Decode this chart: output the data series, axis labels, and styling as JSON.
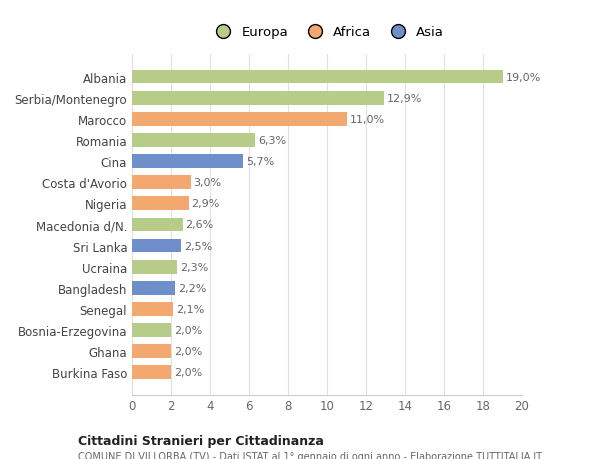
{
  "categories": [
    "Burkina Faso",
    "Ghana",
    "Bosnia-Erzegovina",
    "Senegal",
    "Bangladesh",
    "Ucraina",
    "Sri Lanka",
    "Macedonia d/N.",
    "Nigeria",
    "Costa d'Avorio",
    "Cina",
    "Romania",
    "Marocco",
    "Serbia/Montenegro",
    "Albania"
  ],
  "values": [
    2.0,
    2.0,
    2.0,
    2.1,
    2.2,
    2.3,
    2.5,
    2.6,
    2.9,
    3.0,
    5.7,
    6.3,
    11.0,
    12.9,
    19.0
  ],
  "colors": [
    "#f2a86f",
    "#f2a86f",
    "#b8cc8a",
    "#f2a86f",
    "#6e8fc9",
    "#b8cc8a",
    "#6e8fc9",
    "#b8cc8a",
    "#f2a86f",
    "#f2a86f",
    "#6e8fc9",
    "#b8cc8a",
    "#f2a86f",
    "#b8cc8a",
    "#b8cc8a"
  ],
  "labels": [
    "2,0%",
    "2,0%",
    "2,0%",
    "2,1%",
    "2,2%",
    "2,3%",
    "2,5%",
    "2,6%",
    "2,9%",
    "3,0%",
    "5,7%",
    "6,3%",
    "11,0%",
    "12,9%",
    "19,0%"
  ],
  "legend_labels": [
    "Europa",
    "Africa",
    "Asia"
  ],
  "legend_colors": [
    "#b8cc8a",
    "#f2a86f",
    "#6e8fc9"
  ],
  "xlim": [
    0,
    20
  ],
  "xticks": [
    0,
    2,
    4,
    6,
    8,
    10,
    12,
    14,
    16,
    18,
    20
  ],
  "title1": "Cittadini Stranieri per Cittadinanza",
  "title2": "COMUNE DI VILLORBA (TV) - Dati ISTAT al 1° gennaio di ogni anno - Elaborazione TUTTITALIA.IT",
  "background_color": "#ffffff",
  "grid_color": "#e0e0e0"
}
